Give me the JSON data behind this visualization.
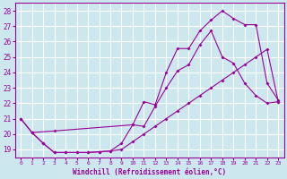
{
  "xlabel": "Windchill (Refroidissement éolien,°C)",
  "bg_color": "#cce8ee",
  "grid_color": "#ffffff",
  "line_color": "#990099",
  "xlim": [
    -0.5,
    23.5
  ],
  "ylim": [
    18.5,
    28.5
  ],
  "yticks": [
    19,
    20,
    21,
    22,
    23,
    24,
    25,
    26,
    27,
    28
  ],
  "xticks": [
    0,
    1,
    2,
    3,
    4,
    5,
    6,
    7,
    8,
    9,
    10,
    11,
    12,
    13,
    14,
    15,
    16,
    17,
    18,
    19,
    20,
    21,
    22,
    23
  ],
  "line1_x": [
    0,
    1,
    3,
    10,
    11,
    12,
    13,
    14,
    15,
    16,
    17,
    18,
    19,
    20,
    21,
    22,
    23
  ],
  "line1_y": [
    21.0,
    20.1,
    20.2,
    20.6,
    22.1,
    21.9,
    24.0,
    25.55,
    25.55,
    26.7,
    27.4,
    28.0,
    27.5,
    27.1,
    27.1,
    23.3,
    22.2
  ],
  "line2_x": [
    0,
    1,
    2,
    3,
    4,
    5,
    6,
    7,
    8,
    9,
    10,
    11,
    12,
    13,
    14,
    15,
    16,
    17,
    18,
    19,
    20,
    21,
    22,
    23
  ],
  "line2_y": [
    21.0,
    20.1,
    19.4,
    18.8,
    18.8,
    18.8,
    18.8,
    18.85,
    18.9,
    19.0,
    19.5,
    20.0,
    20.5,
    21.0,
    21.5,
    22.0,
    22.5,
    23.0,
    23.5,
    24.0,
    24.5,
    25.0,
    25.5,
    22.1
  ],
  "line3_x": [
    1,
    2,
    3,
    4,
    5,
    6,
    7,
    8,
    9,
    10,
    11,
    12,
    13,
    14,
    15,
    16,
    17,
    18,
    19,
    20,
    21,
    22,
    23
  ],
  "line3_y": [
    20.1,
    19.4,
    18.8,
    18.8,
    18.8,
    18.8,
    18.85,
    18.9,
    19.4,
    20.6,
    20.5,
    21.8,
    23.0,
    24.1,
    24.5,
    25.8,
    26.7,
    25.0,
    24.6,
    23.3,
    22.5,
    22.0,
    22.1
  ]
}
